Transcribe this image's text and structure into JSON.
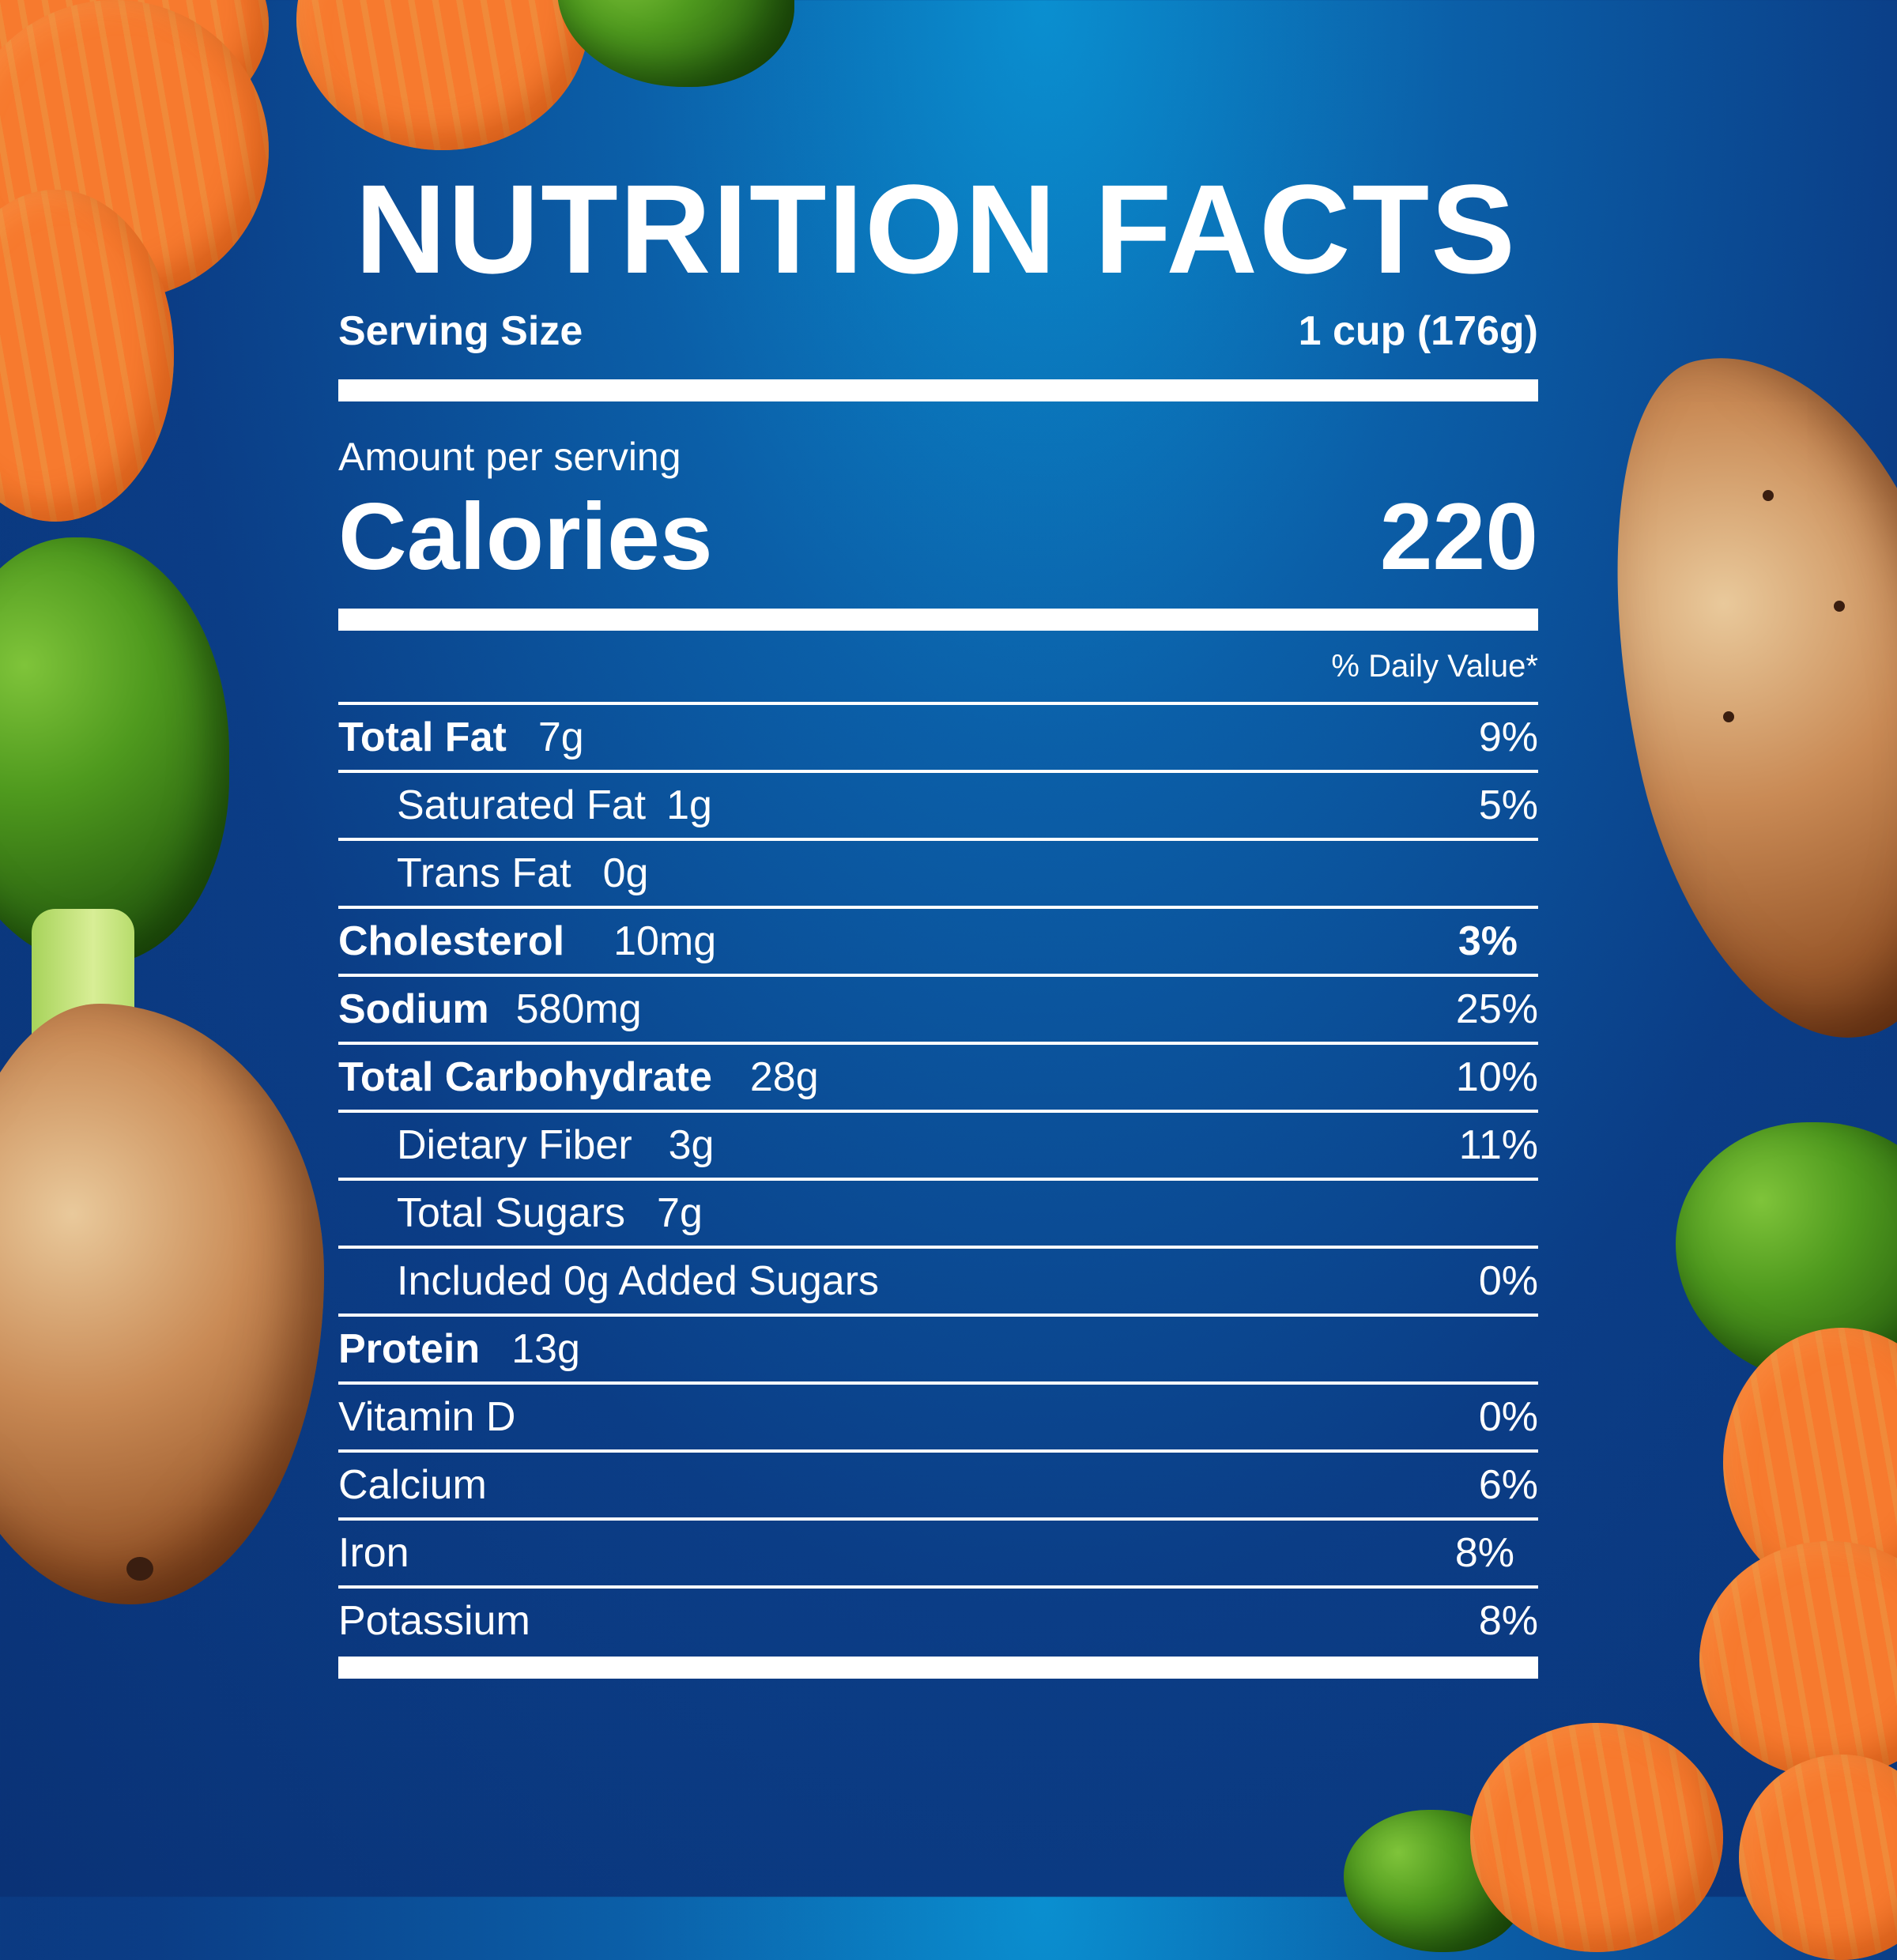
{
  "label": {
    "title": "NUTRITION FACTS",
    "serving_size_label": "Serving Size",
    "serving_size_value": "1 cup (176g)",
    "amount_per_serving": "Amount per serving",
    "calories_label": "Calories",
    "calories_value": "220",
    "daily_value_header": "% Daily Value*",
    "rows": [
      {
        "name": "Total Fat",
        "amount": "7g",
        "dv": "9%"
      },
      {
        "name": "Saturated Fat",
        "amount": "1g",
        "dv": "5%"
      },
      {
        "name": "Trans Fat",
        "amount": "0g",
        "dv": ""
      },
      {
        "name": "Cholesterol",
        "amount": "10mg",
        "dv": "3%"
      },
      {
        "name": "Sodium",
        "amount": "580mg",
        "dv": "25%"
      },
      {
        "name": "Total Carbohydrate",
        "amount": "28g",
        "dv": "10%"
      },
      {
        "name": "Dietary Fiber",
        "amount": "3g",
        "dv": "11%"
      },
      {
        "name": "Total Sugars",
        "amount": "7g",
        "dv": ""
      },
      {
        "name": "Included 0g Added Sugars",
        "amount": "",
        "dv": "0%"
      },
      {
        "name": "Protein",
        "amount": "13g",
        "dv": ""
      },
      {
        "name": "Vitamin D",
        "amount": "",
        "dv": "0%"
      },
      {
        "name": "Calcium",
        "amount": "",
        "dv": "6%"
      },
      {
        "name": "Iron",
        "amount": "",
        "dv": "8%"
      },
      {
        "name": "Potassium",
        "amount": "",
        "dv": "8%"
      }
    ]
  },
  "colors": {
    "background_top": "#0a8fd0",
    "background_bottom": "#0a3276",
    "text": "#ffffff"
  },
  "decorations": [
    "carrot-slice-image",
    "broccoli-floret-image",
    "grilled-chicken-image"
  ]
}
